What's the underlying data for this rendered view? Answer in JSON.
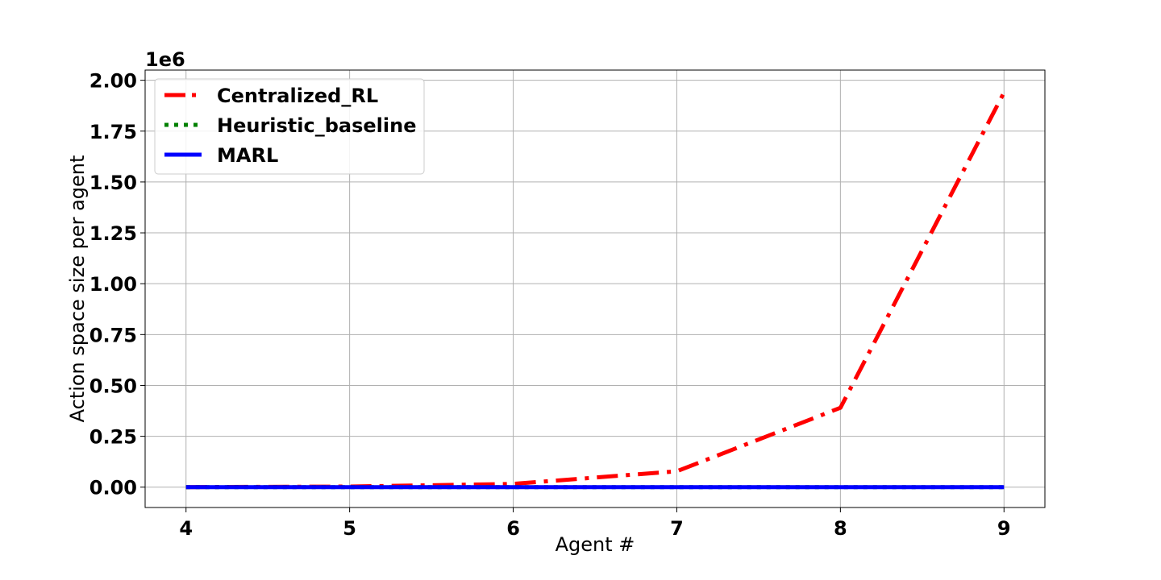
{
  "chart_data": {
    "type": "line",
    "title": "",
    "xlabel": "Agent #",
    "ylabel": "Action space size per agent",
    "y_offset_label": "1e6",
    "x": [
      4,
      5,
      6,
      7,
      8,
      9
    ],
    "xlim": [
      3.75,
      9.25
    ],
    "ylim": [
      -0.1,
      2.05
    ],
    "y_scale_note": "values in units of 1e6",
    "x_ticks": [
      4,
      5,
      6,
      7,
      8,
      9
    ],
    "x_tick_labels": [
      "4",
      "5",
      "6",
      "7",
      "8",
      "9"
    ],
    "y_ticks": [
      0.0,
      0.25,
      0.5,
      0.75,
      1.0,
      1.25,
      1.5,
      1.75,
      2.0
    ],
    "y_tick_labels": [
      "0.00",
      "0.25",
      "0.50",
      "0.75",
      "1.00",
      "1.25",
      "1.50",
      "1.75",
      "2.00"
    ],
    "grid": true,
    "legend_position": "top-left",
    "series": [
      {
        "name": "Centralized_RL",
        "color": "#ff0000",
        "style": "dashdot",
        "values": [
          0.0002,
          0.003,
          0.016,
          0.078,
          0.39,
          1.94
        ]
      },
      {
        "name": "Heuristic_baseline",
        "color": "#008000",
        "style": "dotted",
        "values": [
          0.0,
          0.0,
          0.0,
          0.0,
          0.0,
          0.0
        ]
      },
      {
        "name": "MARL",
        "color": "#0000ff",
        "style": "solid",
        "values": [
          0.0,
          0.0,
          0.0,
          0.0,
          0.0,
          0.0
        ]
      }
    ]
  }
}
